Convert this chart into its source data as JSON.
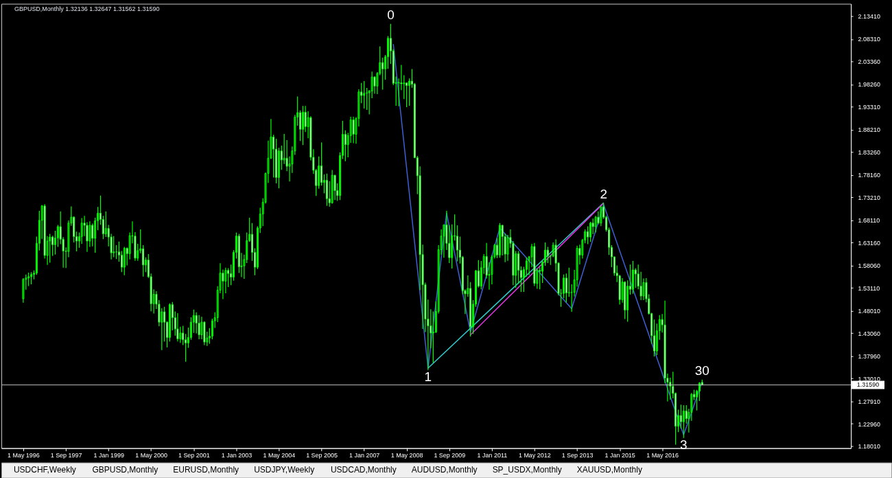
{
  "chart_data": {
    "type": "candlestick",
    "title": "GBPUSD,Monthly 1.32136 1.32647 1.31562 1.31590",
    "color": "#00ff00",
    "x": [
      "1996-05",
      "1996-06",
      "1996-07",
      "1996-08",
      "1996-09",
      "1996-10",
      "1996-11",
      "1996-12",
      "1997-01",
      "1997-02",
      "1997-03",
      "1997-04",
      "1997-05",
      "1997-06",
      "1997-07",
      "1997-08",
      "1997-09",
      "1997-10",
      "1997-11",
      "1997-12",
      "1998-01",
      "1998-02",
      "1998-03",
      "1998-04",
      "1998-05",
      "1998-06",
      "1998-07",
      "1998-08",
      "1998-09",
      "1998-10",
      "1998-11",
      "1998-12",
      "1999-01",
      "1999-02",
      "1999-03",
      "1999-04",
      "1999-05",
      "1999-06",
      "1999-07",
      "1999-08",
      "1999-09",
      "1999-10",
      "1999-11",
      "1999-12",
      "2000-01",
      "2000-02",
      "2000-03",
      "2000-04",
      "2000-05",
      "2000-06",
      "2000-07",
      "2000-08",
      "2000-09",
      "2000-10",
      "2000-11",
      "2000-12",
      "2001-01",
      "2001-02",
      "2001-03",
      "2001-04",
      "2001-05",
      "2001-06",
      "2001-07",
      "2001-08",
      "2001-09",
      "2001-10",
      "2001-11",
      "2001-12",
      "2002-01",
      "2002-02",
      "2002-03",
      "2002-04",
      "2002-05",
      "2002-06",
      "2002-07",
      "2002-08",
      "2002-09",
      "2002-10",
      "2002-11",
      "2002-12",
      "2003-01",
      "2003-02",
      "2003-03",
      "2003-04",
      "2003-05",
      "2003-06",
      "2003-07",
      "2003-08",
      "2003-09",
      "2003-10",
      "2003-11",
      "2003-12",
      "2004-01",
      "2004-02",
      "2004-03",
      "2004-04",
      "2004-05",
      "2004-06",
      "2004-07",
      "2004-08",
      "2004-09",
      "2004-10",
      "2004-11",
      "2004-12",
      "2005-01",
      "2005-02",
      "2005-03",
      "2005-04",
      "2005-05",
      "2005-06",
      "2005-07",
      "2005-08",
      "2005-09",
      "2005-10",
      "2005-11",
      "2005-12",
      "2006-01",
      "2006-02",
      "2006-03",
      "2006-04",
      "2006-05",
      "2006-06",
      "2006-07",
      "2006-08",
      "2006-09",
      "2006-10",
      "2006-11",
      "2006-12",
      "2007-01",
      "2007-02",
      "2007-03",
      "2007-04",
      "2007-05",
      "2007-06",
      "2007-07",
      "2007-08",
      "2007-09",
      "2007-10",
      "2007-11",
      "2007-12",
      "2008-01",
      "2008-02",
      "2008-03",
      "2008-04",
      "2008-05",
      "2008-06",
      "2008-07",
      "2008-08",
      "2008-09",
      "2008-10",
      "2008-11",
      "2008-12",
      "2009-01",
      "2009-02",
      "2009-03",
      "2009-04",
      "2009-05",
      "2009-06",
      "2009-07",
      "2009-08",
      "2009-09",
      "2009-10",
      "2009-11",
      "2009-12",
      "2010-01",
      "2010-02",
      "2010-03",
      "2010-04",
      "2010-05",
      "2010-06",
      "2010-07",
      "2010-08",
      "2010-09",
      "2010-10",
      "2010-11",
      "2010-12",
      "2011-01",
      "2011-02",
      "2011-03",
      "2011-04",
      "2011-05",
      "2011-06",
      "2011-07",
      "2011-08",
      "2011-09",
      "2011-10",
      "2011-11",
      "2011-12",
      "2012-01",
      "2012-02",
      "2012-03",
      "2012-04",
      "2012-05",
      "2012-06",
      "2012-07",
      "2012-08",
      "2012-09",
      "2012-10",
      "2012-11",
      "2012-12",
      "2013-01",
      "2013-02",
      "2013-03",
      "2013-04",
      "2013-05",
      "2013-06",
      "2013-07",
      "2013-08",
      "2013-09",
      "2013-10",
      "2013-11",
      "2013-12",
      "2014-01",
      "2014-02",
      "2014-03",
      "2014-04",
      "2014-05",
      "2014-06",
      "2014-07",
      "2014-08",
      "2014-09",
      "2014-10",
      "2014-11",
      "2014-12",
      "2015-01",
      "2015-02",
      "2015-03",
      "2015-04",
      "2015-05",
      "2015-06",
      "2015-07",
      "2015-08",
      "2015-09",
      "2015-10",
      "2015-11",
      "2015-12",
      "2016-01",
      "2016-02",
      "2016-03",
      "2016-04",
      "2016-05",
      "2016-06",
      "2016-07",
      "2016-08",
      "2016-09",
      "2016-10",
      "2016-11",
      "2016-12",
      "2017-01",
      "2017-02",
      "2017-03",
      "2017-04",
      "2017-05",
      "2017-06",
      "2017-07",
      "2017-08"
    ],
    "ohlc": [
      [
        1.507,
        1.552,
        1.499,
        1.55
      ],
      [
        1.55,
        1.56,
        1.528,
        1.553
      ],
      [
        1.553,
        1.564,
        1.536,
        1.556
      ],
      [
        1.556,
        1.565,
        1.54,
        1.561
      ],
      [
        1.561,
        1.569,
        1.551,
        1.564
      ],
      [
        1.564,
        1.644,
        1.561,
        1.63
      ],
      [
        1.63,
        1.701,
        1.615,
        1.681
      ],
      [
        1.681,
        1.714,
        1.641,
        1.713
      ],
      [
        1.713,
        1.716,
        1.597,
        1.603
      ],
      [
        1.603,
        1.645,
        1.583,
        1.635
      ],
      [
        1.635,
        1.65,
        1.588,
        1.644
      ],
      [
        1.644,
        1.646,
        1.603,
        1.627
      ],
      [
        1.627,
        1.657,
        1.606,
        1.642
      ],
      [
        1.642,
        1.67,
        1.623,
        1.667
      ],
      [
        1.667,
        1.7,
        1.629,
        1.639
      ],
      [
        1.639,
        1.643,
        1.577,
        1.613
      ],
      [
        1.613,
        1.62,
        1.576,
        1.612
      ],
      [
        1.612,
        1.68,
        1.6,
        1.675
      ],
      [
        1.675,
        1.711,
        1.67,
        1.688
      ],
      [
        1.688,
        1.689,
        1.633,
        1.645
      ],
      [
        1.645,
        1.655,
        1.613,
        1.635
      ],
      [
        1.635,
        1.653,
        1.621,
        1.645
      ],
      [
        1.645,
        1.685,
        1.63,
        1.675
      ],
      [
        1.675,
        1.69,
        1.647,
        1.67
      ],
      [
        1.67,
        1.676,
        1.612,
        1.635
      ],
      [
        1.635,
        1.678,
        1.623,
        1.67
      ],
      [
        1.67,
        1.673,
        1.624,
        1.641
      ],
      [
        1.641,
        1.686,
        1.61,
        1.68
      ],
      [
        1.68,
        1.71,
        1.66,
        1.697
      ],
      [
        1.697,
        1.735,
        1.672,
        1.683
      ],
      [
        1.683,
        1.69,
        1.64,
        1.651
      ],
      [
        1.651,
        1.7,
        1.645,
        1.663
      ],
      [
        1.663,
        1.67,
        1.624,
        1.644
      ],
      [
        1.644,
        1.65,
        1.595,
        1.609
      ],
      [
        1.609,
        1.645,
        1.6,
        1.611
      ],
      [
        1.611,
        1.625,
        1.596,
        1.611
      ],
      [
        1.611,
        1.633,
        1.59,
        1.604
      ],
      [
        1.604,
        1.612,
        1.567,
        1.577
      ],
      [
        1.577,
        1.621,
        1.56,
        1.619
      ],
      [
        1.619,
        1.62,
        1.582,
        1.607
      ],
      [
        1.607,
        1.653,
        1.595,
        1.647
      ],
      [
        1.647,
        1.678,
        1.631,
        1.646
      ],
      [
        1.646,
        1.654,
        1.592,
        1.597
      ],
      [
        1.597,
        1.628,
        1.592,
        1.614
      ],
      [
        1.614,
        1.66,
        1.609,
        1.618
      ],
      [
        1.618,
        1.625,
        1.557,
        1.582
      ],
      [
        1.582,
        1.598,
        1.567,
        1.593
      ],
      [
        1.593,
        1.605,
        1.554,
        1.556
      ],
      [
        1.556,
        1.562,
        1.48,
        1.496
      ],
      [
        1.496,
        1.527,
        1.475,
        1.517
      ],
      [
        1.517,
        1.523,
        1.485,
        1.495
      ],
      [
        1.495,
        1.503,
        1.447,
        1.455
      ],
      [
        1.455,
        1.485,
        1.394,
        1.478
      ],
      [
        1.478,
        1.488,
        1.413,
        1.455
      ],
      [
        1.455,
        1.456,
        1.4,
        1.421
      ],
      [
        1.421,
        1.496,
        1.413,
        1.494
      ],
      [
        1.494,
        1.499,
        1.438,
        1.465
      ],
      [
        1.465,
        1.478,
        1.426,
        1.44
      ],
      [
        1.44,
        1.474,
        1.413,
        1.418
      ],
      [
        1.418,
        1.444,
        1.41,
        1.431
      ],
      [
        1.431,
        1.446,
        1.405,
        1.416
      ],
      [
        1.416,
        1.428,
        1.368,
        1.409
      ],
      [
        1.409,
        1.442,
        1.399,
        1.421
      ],
      [
        1.421,
        1.465,
        1.417,
        1.455
      ],
      [
        1.455,
        1.482,
        1.432,
        1.47
      ],
      [
        1.47,
        1.476,
        1.431,
        1.453
      ],
      [
        1.453,
        1.47,
        1.418,
        1.427
      ],
      [
        1.427,
        1.466,
        1.418,
        1.455
      ],
      [
        1.455,
        1.456,
        1.405,
        1.411
      ],
      [
        1.411,
        1.433,
        1.403,
        1.42
      ],
      [
        1.42,
        1.441,
        1.408,
        1.424
      ],
      [
        1.424,
        1.462,
        1.418,
        1.458
      ],
      [
        1.458,
        1.476,
        1.443,
        1.465
      ],
      [
        1.465,
        1.534,
        1.456,
        1.526
      ],
      [
        1.526,
        1.585,
        1.52,
        1.564
      ],
      [
        1.564,
        1.571,
        1.507,
        1.546
      ],
      [
        1.546,
        1.575,
        1.52,
        1.57
      ],
      [
        1.57,
        1.574,
        1.534,
        1.563
      ],
      [
        1.563,
        1.582,
        1.538,
        1.555
      ],
      [
        1.555,
        1.614,
        1.548,
        1.61
      ],
      [
        1.61,
        1.653,
        1.597,
        1.646
      ],
      [
        1.646,
        1.65,
        1.565,
        1.578
      ],
      [
        1.578,
        1.608,
        1.556,
        1.58
      ],
      [
        1.58,
        1.604,
        1.552,
        1.594
      ],
      [
        1.594,
        1.653,
        1.587,
        1.636
      ],
      [
        1.636,
        1.686,
        1.634,
        1.65
      ],
      [
        1.65,
        1.674,
        1.592,
        1.61
      ],
      [
        1.61,
        1.618,
        1.56,
        1.577
      ],
      [
        1.577,
        1.667,
        1.574,
        1.664
      ],
      [
        1.664,
        1.708,
        1.654,
        1.695
      ],
      [
        1.695,
        1.729,
        1.669,
        1.721
      ],
      [
        1.721,
        1.786,
        1.719,
        1.785
      ],
      [
        1.785,
        1.857,
        1.765,
        1.819
      ],
      [
        1.819,
        1.905,
        1.818,
        1.866
      ],
      [
        1.866,
        1.87,
        1.777,
        1.839
      ],
      [
        1.839,
        1.861,
        1.764,
        1.776
      ],
      [
        1.776,
        1.841,
        1.753,
        1.835
      ],
      [
        1.835,
        1.846,
        1.794,
        1.815
      ],
      [
        1.815,
        1.872,
        1.807,
        1.819
      ],
      [
        1.819,
        1.858,
        1.791,
        1.801
      ],
      [
        1.801,
        1.822,
        1.768,
        1.806
      ],
      [
        1.806,
        1.844,
        1.787,
        1.835
      ],
      [
        1.835,
        1.914,
        1.827,
        1.91
      ],
      [
        1.91,
        1.955,
        1.892,
        1.92
      ],
      [
        1.92,
        1.924,
        1.858,
        1.883
      ],
      [
        1.883,
        1.934,
        1.849,
        1.921
      ],
      [
        1.921,
        1.934,
        1.878,
        1.889
      ],
      [
        1.889,
        1.922,
        1.864,
        1.909
      ],
      [
        1.909,
        1.911,
        1.815,
        1.821
      ],
      [
        1.821,
        1.838,
        1.785,
        1.792
      ],
      [
        1.792,
        1.794,
        1.736,
        1.758
      ],
      [
        1.758,
        1.822,
        1.752,
        1.802
      ],
      [
        1.802,
        1.853,
        1.759,
        1.765
      ],
      [
        1.765,
        1.782,
        1.742,
        1.77
      ],
      [
        1.77,
        1.784,
        1.714,
        1.729
      ],
      [
        1.729,
        1.767,
        1.712,
        1.72
      ],
      [
        1.72,
        1.792,
        1.719,
        1.781
      ],
      [
        1.781,
        1.781,
        1.727,
        1.747
      ],
      [
        1.747,
        1.762,
        1.725,
        1.736
      ],
      [
        1.736,
        1.831,
        1.727,
        1.825
      ],
      [
        1.825,
        1.901,
        1.818,
        1.872
      ],
      [
        1.872,
        1.88,
        1.813,
        1.849
      ],
      [
        1.849,
        1.874,
        1.822,
        1.869
      ],
      [
        1.869,
        1.91,
        1.854,
        1.904
      ],
      [
        1.904,
        1.91,
        1.853,
        1.872
      ],
      [
        1.872,
        1.909,
        1.852,
        1.907
      ],
      [
        1.907,
        1.971,
        1.89,
        1.966
      ],
      [
        1.966,
        1.985,
        1.942,
        1.958
      ],
      [
        1.958,
        1.989,
        1.93,
        1.963
      ],
      [
        1.963,
        1.974,
        1.927,
        1.964
      ],
      [
        1.964,
        1.969,
        1.917,
        1.968
      ],
      [
        1.968,
        2.01,
        1.953,
        1.999
      ],
      [
        1.999,
        2.0,
        1.963,
        1.979
      ],
      [
        1.979,
        2.009,
        1.962,
        2.007
      ],
      [
        2.007,
        2.066,
        2.004,
        2.031
      ],
      [
        2.031,
        2.041,
        1.972,
        2.017
      ],
      [
        2.017,
        2.047,
        1.994,
        2.044
      ],
      [
        2.044,
        2.089,
        2.018,
        2.085
      ],
      [
        2.085,
        2.116,
        2.029,
        2.057
      ],
      [
        2.057,
        2.06,
        1.982,
        1.985
      ],
      [
        1.985,
        1.999,
        1.936,
        1.987
      ],
      [
        1.987,
        1.995,
        1.935,
        1.986
      ],
      [
        1.986,
        2.025,
        1.971,
        1.984
      ],
      [
        1.984,
        2.002,
        1.951,
        1.986
      ],
      [
        1.986,
        1.986,
        1.933,
        1.98
      ],
      [
        1.98,
        1.995,
        1.936,
        1.99
      ],
      [
        1.99,
        2.016,
        1.976,
        1.983
      ],
      [
        1.983,
        1.985,
        1.82,
        1.82
      ],
      [
        1.82,
        1.823,
        1.74,
        1.78
      ],
      [
        1.78,
        1.8,
        1.527,
        1.605
      ],
      [
        1.605,
        1.626,
        1.441,
        1.538
      ],
      [
        1.538,
        1.542,
        1.434,
        1.462
      ],
      [
        1.462,
        1.504,
        1.35,
        1.447
      ],
      [
        1.447,
        1.483,
        1.398,
        1.431
      ],
      [
        1.431,
        1.478,
        1.366,
        1.433
      ],
      [
        1.433,
        1.5,
        1.432,
        1.479
      ],
      [
        1.479,
        1.625,
        1.475,
        1.616
      ],
      [
        1.616,
        1.66,
        1.606,
        1.646
      ],
      [
        1.646,
        1.671,
        1.599,
        1.671
      ],
      [
        1.671,
        1.701,
        1.616,
        1.63
      ],
      [
        1.63,
        1.669,
        1.587,
        1.598
      ],
      [
        1.598,
        1.671,
        1.575,
        1.647
      ],
      [
        1.647,
        1.693,
        1.637,
        1.646
      ],
      [
        1.646,
        1.669,
        1.591,
        1.615
      ],
      [
        1.615,
        1.644,
        1.586,
        1.599
      ],
      [
        1.599,
        1.601,
        1.518,
        1.525
      ],
      [
        1.525,
        1.527,
        1.474,
        1.518
      ],
      [
        1.518,
        1.558,
        1.512,
        1.53
      ],
      [
        1.53,
        1.543,
        1.424,
        1.445
      ],
      [
        1.445,
        1.503,
        1.43,
        1.495
      ],
      [
        1.495,
        1.57,
        1.49,
        1.569
      ],
      [
        1.569,
        1.592,
        1.533,
        1.535
      ],
      [
        1.535,
        1.59,
        1.529,
        1.576
      ],
      [
        1.576,
        1.605,
        1.563,
        1.601
      ],
      [
        1.601,
        1.63,
        1.553,
        1.559
      ],
      [
        1.559,
        1.587,
        1.528,
        1.561
      ],
      [
        1.561,
        1.603,
        1.54,
        1.6
      ],
      [
        1.6,
        1.628,
        1.597,
        1.626
      ],
      [
        1.626,
        1.641,
        1.598,
        1.604
      ],
      [
        1.604,
        1.674,
        1.599,
        1.67
      ],
      [
        1.67,
        1.67,
        1.604,
        1.645
      ],
      [
        1.645,
        1.651,
        1.589,
        1.606
      ],
      [
        1.606,
        1.648,
        1.592,
        1.643
      ],
      [
        1.643,
        1.66,
        1.621,
        1.63
      ],
      [
        1.63,
        1.634,
        1.538,
        1.559
      ],
      [
        1.559,
        1.612,
        1.532,
        1.607
      ],
      [
        1.607,
        1.612,
        1.541,
        1.57
      ],
      [
        1.57,
        1.578,
        1.523,
        1.554
      ],
      [
        1.554,
        1.577,
        1.523,
        1.572
      ],
      [
        1.572,
        1.598,
        1.557,
        1.591
      ],
      [
        1.591,
        1.601,
        1.56,
        1.6
      ],
      [
        1.6,
        1.628,
        1.578,
        1.623
      ],
      [
        1.623,
        1.63,
        1.536,
        1.541
      ],
      [
        1.541,
        1.573,
        1.53,
        1.57
      ],
      [
        1.57,
        1.576,
        1.529,
        1.568
      ],
      [
        1.568,
        1.591,
        1.543,
        1.588
      ],
      [
        1.588,
        1.631,
        1.581,
        1.615
      ],
      [
        1.615,
        1.621,
        1.587,
        1.602
      ],
      [
        1.602,
        1.603,
        1.583,
        1.602
      ],
      [
        1.602,
        1.631,
        1.6,
        1.626
      ],
      [
        1.626,
        1.638,
        1.568,
        1.586
      ],
      [
        1.586,
        1.587,
        1.515,
        1.519
      ],
      [
        1.519,
        1.528,
        1.49,
        1.519
      ],
      [
        1.519,
        1.56,
        1.509,
        1.553
      ],
      [
        1.553,
        1.562,
        1.5,
        1.52
      ],
      [
        1.52,
        1.575,
        1.512,
        1.521
      ],
      [
        1.521,
        1.538,
        1.479,
        1.521
      ],
      [
        1.521,
        1.57,
        1.513,
        1.549
      ],
      [
        1.549,
        1.624,
        1.535,
        1.619
      ],
      [
        1.619,
        1.626,
        1.584,
        1.604
      ],
      [
        1.604,
        1.639,
        1.597,
        1.637
      ],
      [
        1.637,
        1.66,
        1.631,
        1.656
      ],
      [
        1.656,
        1.667,
        1.629,
        1.644
      ],
      [
        1.644,
        1.677,
        1.634,
        1.675
      ],
      [
        1.675,
        1.684,
        1.651,
        1.667
      ],
      [
        1.667,
        1.69,
        1.655,
        1.688
      ],
      [
        1.688,
        1.7,
        1.673,
        1.675
      ],
      [
        1.675,
        1.711,
        1.669,
        1.711
      ],
      [
        1.711,
        1.719,
        1.685,
        1.688
      ],
      [
        1.688,
        1.69,
        1.657,
        1.66
      ],
      [
        1.66,
        1.664,
        1.605,
        1.621
      ],
      [
        1.621,
        1.625,
        1.578,
        1.6
      ],
      [
        1.6,
        1.6,
        1.559,
        1.564
      ],
      [
        1.564,
        1.58,
        1.545,
        1.558
      ],
      [
        1.558,
        1.559,
        1.495,
        1.505
      ],
      [
        1.505,
        1.552,
        1.499,
        1.544
      ],
      [
        1.544,
        1.545,
        1.463,
        1.482
      ],
      [
        1.482,
        1.547,
        1.457,
        1.535
      ],
      [
        1.535,
        1.582,
        1.517,
        1.528
      ],
      [
        1.528,
        1.59,
        1.519,
        1.571
      ],
      [
        1.571,
        1.574,
        1.532,
        1.562
      ],
      [
        1.562,
        1.582,
        1.529,
        1.535
      ],
      [
        1.535,
        1.566,
        1.505,
        1.513
      ],
      [
        1.513,
        1.551,
        1.505,
        1.543
      ],
      [
        1.543,
        1.552,
        1.5,
        1.507
      ],
      [
        1.507,
        1.516,
        1.473,
        1.474
      ],
      [
        1.474,
        1.475,
        1.408,
        1.425
      ],
      [
        1.425,
        1.46,
        1.38,
        1.391
      ],
      [
        1.391,
        1.451,
        1.383,
        1.436
      ],
      [
        1.436,
        1.47,
        1.417,
        1.461
      ],
      [
        1.461,
        1.472,
        1.433,
        1.449
      ],
      [
        1.449,
        1.502,
        1.32,
        1.331
      ],
      [
        1.331,
        1.34,
        1.28,
        1.322
      ],
      [
        1.322,
        1.331,
        1.284,
        1.313
      ],
      [
        1.313,
        1.344,
        1.287,
        1.297
      ],
      [
        1.297,
        1.298,
        1.184,
        1.224
      ],
      [
        1.224,
        1.26,
        1.212,
        1.248
      ],
      [
        1.248,
        1.271,
        1.22,
        1.234
      ],
      [
        1.234,
        1.27,
        1.199,
        1.258
      ],
      [
        1.258,
        1.27,
        1.231,
        1.241
      ],
      [
        1.241,
        1.262,
        1.211,
        1.255
      ],
      [
        1.255,
        1.297,
        1.237,
        1.295
      ],
      [
        1.295,
        1.304,
        1.283,
        1.289
      ],
      [
        1.289,
        1.304,
        1.26,
        1.302
      ],
      [
        1.302,
        1.321,
        1.281,
        1.32
      ],
      [
        1.32136,
        1.32647,
        1.31562,
        1.3159
      ]
    ],
    "series": [
      {
        "type": "line",
        "color": "#3f5fd5",
        "x": [
          "2007-12",
          "2009-01",
          "2009-08",
          "2010-05",
          "2011-04",
          "2013-07",
          "2014-07",
          "2017-01",
          "2017-08"
        ],
        "values": [
          2.072,
          1.353,
          1.697,
          1.433,
          1.664,
          1.485,
          1.716,
          1.205,
          1.323
        ]
      },
      {
        "type": "line",
        "color": "#33cccc",
        "x": [
          "2009-01",
          "2014-07"
        ],
        "values": [
          1.353,
          1.72
        ]
      },
      {
        "type": "line",
        "color": "#dd33dd",
        "x": [
          "2010-05",
          "2014-07"
        ],
        "values": [
          1.427,
          1.719
        ]
      }
    ],
    "xlim": [
      "1995-10-03",
      "2022-02-17"
    ],
    "xticks": [
      {
        "value": "1996-05",
        "label": "1 May 1996"
      },
      {
        "value": "1997-09",
        "label": "1 Sep 1997"
      },
      {
        "value": "1999-01",
        "label": "1 Jan 1999"
      },
      {
        "value": "2000-05",
        "label": "1 May 2000"
      },
      {
        "value": "2001-09",
        "label": "1 Sep 2001"
      },
      {
        "value": "2003-01",
        "label": "1 Jan 2003"
      },
      {
        "value": "2004-05",
        "label": "1 May 2004"
      },
      {
        "value": "2005-09",
        "label": "1 Sep 2005"
      },
      {
        "value": "2007-01",
        "label": "1 Jan 2007"
      },
      {
        "value": "2008-05",
        "label": "1 May 2008"
      },
      {
        "value": "2009-09",
        "label": "1 Sep 2009"
      },
      {
        "value": "2011-01",
        "label": "1 Jan 2011"
      },
      {
        "value": "2012-05",
        "label": "1 May 2012"
      },
      {
        "value": "2013-09",
        "label": "1 Sep 2013"
      },
      {
        "value": "2015-01",
        "label": "1 Jan 2015"
      },
      {
        "value": "2016-05",
        "label": "1 May 2016"
      }
    ],
    "ylim": [
      1.1755,
      2.1615
    ],
    "yticks": [
      {
        "value": 1.1801,
        "label": "1.18010"
      },
      {
        "value": 1.2296,
        "label": "1.22960"
      },
      {
        "value": 1.2791,
        "label": "1.27910"
      },
      {
        "value": 1.3301,
        "label": "1.33010"
      },
      {
        "value": 1.3796,
        "label": "1.37960"
      },
      {
        "value": 1.4306,
        "label": "1.43060"
      },
      {
        "value": 1.4801,
        "label": "1.48010"
      },
      {
        "value": 1.5311,
        "label": "1.53110"
      },
      {
        "value": 1.5806,
        "label": "1.58060"
      },
      {
        "value": 1.6316,
        "label": "1.63160"
      },
      {
        "value": 1.6811,
        "label": "1.68110"
      },
      {
        "value": 1.7321,
        "label": "1.73210"
      },
      {
        "value": 1.7816,
        "label": "1.78160"
      },
      {
        "value": 1.8326,
        "label": "1.83260"
      },
      {
        "value": 1.8821,
        "label": "1.88210"
      },
      {
        "value": 1.9331,
        "label": "1.93310"
      },
      {
        "value": 1.9826,
        "label": "1.98260"
      },
      {
        "value": 2.0336,
        "label": "2.03360"
      },
      {
        "value": 2.0831,
        "label": "2.08310"
      },
      {
        "value": 2.1341,
        "label": "2.13410"
      }
    ],
    "ref_lines": [
      {
        "axis": "y",
        "value": 1.3159,
        "label": "1.31590",
        "color": "#c0c0c0"
      }
    ],
    "annotations": [
      {
        "text": "0",
        "x": "2007-11",
        "y": 2.116
      },
      {
        "text": "1",
        "x": "2009-01",
        "y": 1.35
      },
      {
        "text": "2",
        "x": "2014-07",
        "y": 1.719
      },
      {
        "text": "3",
        "x": "2017-01",
        "y": 1.199
      },
      {
        "text": "30",
        "x": "2017-08",
        "y": 1.32647
      },
      "USDCHF,Weekly",
      "GBPUSD,Monthly",
      "EURUSD,Monthly",
      "USDJPY,Weekly",
      "USDCAD,Monthly",
      "AUDUSD,Monthly",
      "SP_USDX,Monthly",
      "XAUUSD,Monthly"
    ]
  }
}
